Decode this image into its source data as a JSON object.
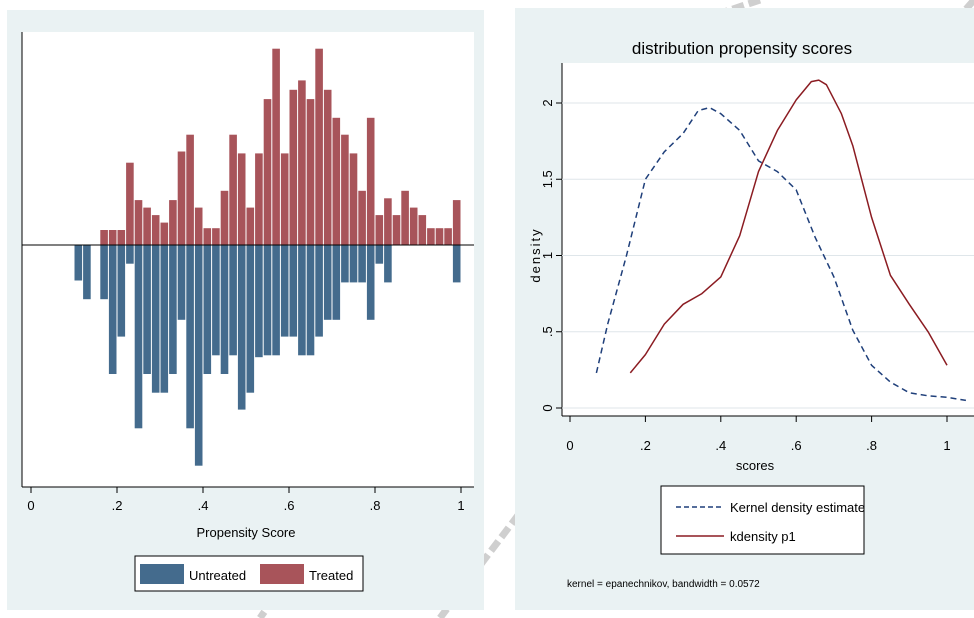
{
  "chart_data": [
    {
      "type": "bar",
      "subtype": "mirrored-histogram",
      "xlabel": "Propensity Score",
      "x_ticks": [
        "0",
        ".2",
        ".4",
        ".6",
        ".8",
        "1"
      ],
      "xlim": [
        0,
        1
      ],
      "bin_width": 0.02,
      "legend": {
        "placement": "bottom",
        "entries": [
          "Untreated",
          "Treated"
        ]
      },
      "colors": {
        "untreated": "#446b8d",
        "treated": "#a8545a"
      },
      "series": [
        {
          "name": "Treated",
          "direction": "up",
          "bins": [
            [
              0.16,
              0.8
            ],
            [
              0.18,
              0.8
            ],
            [
              0.2,
              0.8
            ],
            [
              0.22,
              4.4
            ],
            [
              0.24,
              2.4
            ],
            [
              0.26,
              2.0
            ],
            [
              0.28,
              1.6
            ],
            [
              0.3,
              1.2
            ],
            [
              0.32,
              2.4
            ],
            [
              0.34,
              5.0
            ],
            [
              0.36,
              5.9
            ],
            [
              0.38,
              2.0
            ],
            [
              0.4,
              0.9
            ],
            [
              0.42,
              0.9
            ],
            [
              0.44,
              2.9
            ],
            [
              0.46,
              5.9
            ],
            [
              0.48,
              4.9
            ],
            [
              0.5,
              2.0
            ],
            [
              0.52,
              4.9
            ],
            [
              0.54,
              7.8
            ],
            [
              0.56,
              10.5
            ],
            [
              0.58,
              4.9
            ],
            [
              0.6,
              8.3
            ],
            [
              0.62,
              8.8
            ],
            [
              0.64,
              7.8
            ],
            [
              0.66,
              10.5
            ],
            [
              0.68,
              8.3
            ],
            [
              0.7,
              6.8
            ],
            [
              0.72,
              5.9
            ],
            [
              0.74,
              4.9
            ],
            [
              0.76,
              2.9
            ],
            [
              0.78,
              6.8
            ],
            [
              0.8,
              1.6
            ],
            [
              0.82,
              2.5
            ],
            [
              0.84,
              1.6
            ],
            [
              0.86,
              2.9
            ],
            [
              0.88,
              2.0
            ],
            [
              0.9,
              1.6
            ],
            [
              0.92,
              0.9
            ],
            [
              0.94,
              0.9
            ],
            [
              0.96,
              0.9
            ],
            [
              0.98,
              2.4
            ]
          ]
        },
        {
          "name": "Untreated",
          "direction": "down",
          "bins": [
            [
              0.1,
              1.9
            ],
            [
              0.12,
              2.9
            ],
            [
              0.16,
              2.9
            ],
            [
              0.18,
              6.9
            ],
            [
              0.2,
              4.9
            ],
            [
              0.22,
              1.0
            ],
            [
              0.24,
              9.8
            ],
            [
              0.26,
              6.9
            ],
            [
              0.28,
              7.9
            ],
            [
              0.3,
              7.9
            ],
            [
              0.32,
              6.9
            ],
            [
              0.34,
              4.0
            ],
            [
              0.36,
              9.8
            ],
            [
              0.38,
              11.8
            ],
            [
              0.4,
              6.9
            ],
            [
              0.42,
              5.9
            ],
            [
              0.44,
              6.9
            ],
            [
              0.46,
              5.9
            ],
            [
              0.48,
              8.8
            ],
            [
              0.5,
              7.9
            ],
            [
              0.52,
              6.0
            ],
            [
              0.54,
              5.9
            ],
            [
              0.56,
              5.9
            ],
            [
              0.58,
              4.9
            ],
            [
              0.6,
              4.9
            ],
            [
              0.62,
              5.9
            ],
            [
              0.64,
              5.9
            ],
            [
              0.66,
              4.9
            ],
            [
              0.68,
              4.0
            ],
            [
              0.7,
              4.0
            ],
            [
              0.72,
              2.0
            ],
            [
              0.74,
              2.0
            ],
            [
              0.76,
              2.0
            ],
            [
              0.78,
              4.0
            ],
            [
              0.8,
              1.0
            ],
            [
              0.82,
              2.0
            ],
            [
              0.98,
              2.0
            ]
          ]
        }
      ]
    },
    {
      "type": "line",
      "title": "distribution propensity scores",
      "xlabel": "scores",
      "ylabel": "density",
      "xlim": [
        0,
        1.05
      ],
      "ylim": [
        0,
        2.2
      ],
      "x_ticks": [
        0,
        0.2,
        0.4,
        0.6,
        0.8,
        1
      ],
      "x_tick_labels": [
        "0",
        ".2",
        ".4",
        ".6",
        ".8",
        "1"
      ],
      "y_ticks": [
        0,
        0.5,
        1,
        1.5,
        2
      ],
      "y_tick_labels": [
        "0",
        ".5",
        "1",
        "1.5",
        "2"
      ],
      "grid": true,
      "note": "kernel = epanechnikov, bandwidth = 0.0572",
      "legend": {
        "placement": "bottom"
      },
      "series": [
        {
          "name": "Kernel density estimate",
          "style": "dashed",
          "color": "#1f3f7a",
          "x": [
            0.07,
            0.1,
            0.15,
            0.2,
            0.25,
            0.3,
            0.34,
            0.37,
            0.4,
            0.45,
            0.5,
            0.55,
            0.6,
            0.65,
            0.7,
            0.75,
            0.8,
            0.85,
            0.9,
            0.95,
            1.0,
            1.05
          ],
          "y": [
            0.23,
            0.55,
            1.0,
            1.5,
            1.68,
            1.8,
            1.95,
            1.97,
            1.93,
            1.82,
            1.62,
            1.55,
            1.43,
            1.12,
            0.86,
            0.51,
            0.28,
            0.17,
            0.1,
            0.08,
            0.07,
            0.05
          ]
        },
        {
          "name": "kdensity p1",
          "style": "solid",
          "color": "#8b1c22",
          "x": [
            0.16,
            0.2,
            0.25,
            0.3,
            0.35,
            0.4,
            0.45,
            0.5,
            0.55,
            0.6,
            0.64,
            0.66,
            0.68,
            0.72,
            0.75,
            0.8,
            0.85,
            0.9,
            0.95,
            1.0
          ],
          "y": [
            0.23,
            0.35,
            0.55,
            0.68,
            0.75,
            0.86,
            1.13,
            1.55,
            1.82,
            2.02,
            2.14,
            2.15,
            2.12,
            1.93,
            1.72,
            1.25,
            0.87,
            0.68,
            0.5,
            0.28
          ]
        }
      ]
    }
  ]
}
